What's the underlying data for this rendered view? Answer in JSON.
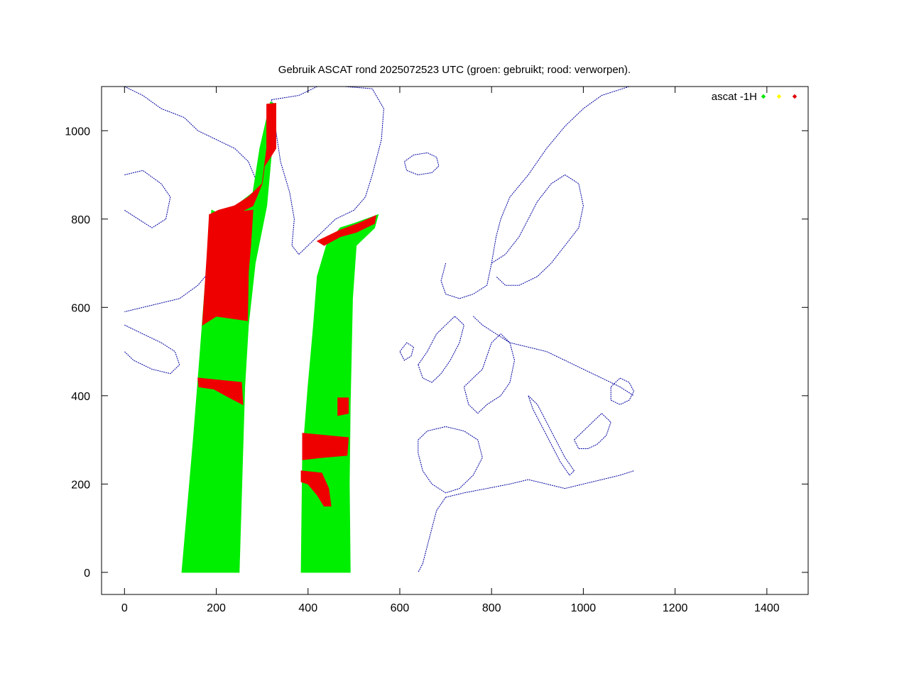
{
  "chart_data": {
    "type": "scatter",
    "title": "Gebruik ASCAT rond 2025072523 UTC (groen: gebruikt; rood: verworpen).",
    "xlabel": "",
    "ylabel": "",
    "xlim": [
      -50,
      1490
    ],
    "ylim": [
      -50,
      1100
    ],
    "x_ticks": [
      0,
      200,
      400,
      600,
      800,
      1000,
      1200,
      1400
    ],
    "y_ticks": [
      0,
      200,
      400,
      600,
      800,
      1000
    ],
    "x_tick_labels": [
      "0",
      "200",
      "400",
      "600",
      "800",
      "1000",
      "1200",
      "1400"
    ],
    "y_tick_labels": [
      "0",
      "200",
      "400",
      "600",
      "800",
      "1000"
    ],
    "grid": false,
    "legend": {
      "placement": "top-right",
      "label": "ascat -1H",
      "colors": [
        "#00e600",
        "#ffff00",
        "#e00000"
      ]
    },
    "colors": {
      "used": "#00ee00",
      "rejected": "#ee0000",
      "coast": "#0000a0"
    },
    "swaths": [
      {
        "name": "swath-west",
        "polygon": [
          [
            125,
            0
          ],
          [
            250,
            0
          ],
          [
            262,
            420
          ],
          [
            270,
            560
          ],
          [
            285,
            700
          ],
          [
            310,
            830
          ],
          [
            330,
            1060
          ],
          [
            318,
            1065
          ],
          [
            295,
            960
          ],
          [
            280,
            860
          ],
          [
            230,
            820
          ],
          [
            210,
            810
          ],
          [
            190,
            820
          ],
          [
            175,
            640
          ],
          [
            165,
            500
          ],
          [
            150,
            300
          ]
        ]
      },
      {
        "name": "swath-east",
        "polygon": [
          [
            385,
            0
          ],
          [
            492,
            0
          ],
          [
            490,
            200
          ],
          [
            492,
            380
          ],
          [
            497,
            620
          ],
          [
            505,
            740
          ],
          [
            545,
            780
          ],
          [
            553,
            810
          ],
          [
            540,
            805
          ],
          [
            500,
            790
          ],
          [
            470,
            780
          ],
          [
            440,
            740
          ],
          [
            420,
            670
          ],
          [
            412,
            560
          ],
          [
            400,
            420
          ],
          [
            388,
            260
          ]
        ]
      }
    ],
    "rejected_regions": [
      {
        "name": "rejected-greenland-strip",
        "polygon": [
          [
            310,
            1060
          ],
          [
            330,
            1062
          ],
          [
            330,
            960
          ],
          [
            318,
            940
          ],
          [
            305,
            920
          ],
          [
            300,
            880
          ],
          [
            270,
            850
          ],
          [
            240,
            830
          ],
          [
            205,
            820
          ],
          [
            185,
            810
          ],
          [
            195,
            800
          ],
          [
            240,
            810
          ],
          [
            280,
            830
          ],
          [
            300,
            880
          ],
          [
            310,
            960
          ]
        ]
      },
      {
        "name": "rejected-north-block",
        "polygon": [
          [
            185,
            810
          ],
          [
            280,
            820
          ],
          [
            275,
            740
          ],
          [
            270,
            680
          ],
          [
            268,
            570
          ],
          [
            200,
            580
          ],
          [
            170,
            560
          ],
          [
            175,
            640
          ],
          [
            180,
            720
          ]
        ]
      },
      {
        "name": "rejected-west-band",
        "polygon": [
          [
            160,
            440
          ],
          [
            255,
            430
          ],
          [
            258,
            380
          ],
          [
            230,
            395
          ],
          [
            195,
            415
          ],
          [
            162,
            420
          ]
        ]
      },
      {
        "name": "rejected-east-north",
        "polygon": [
          [
            420,
            750
          ],
          [
            470,
            775
          ],
          [
            510,
            790
          ],
          [
            548,
            808
          ],
          [
            545,
            790
          ],
          [
            505,
            770
          ],
          [
            470,
            760
          ],
          [
            435,
            740
          ]
        ]
      },
      {
        "name": "rejected-east-band-1",
        "polygon": [
          [
            465,
            395
          ],
          [
            488,
            395
          ],
          [
            488,
            360
          ],
          [
            465,
            355
          ]
        ]
      },
      {
        "name": "rejected-east-band-2",
        "polygon": [
          [
            388,
            315
          ],
          [
            488,
            305
          ],
          [
            485,
            265
          ],
          [
            430,
            260
          ],
          [
            388,
            255
          ]
        ]
      },
      {
        "name": "rejected-east-blob",
        "polygon": [
          [
            385,
            230
          ],
          [
            430,
            225
          ],
          [
            445,
            190
          ],
          [
            450,
            150
          ],
          [
            435,
            150
          ],
          [
            420,
            175
          ],
          [
            400,
            200
          ],
          [
            385,
            205
          ]
        ]
      }
    ],
    "coastlines": [
      {
        "name": "greenland",
        "points": [
          [
            320,
            1070
          ],
          [
            380,
            1080
          ],
          [
            420,
            1100
          ],
          [
            480,
            1100
          ],
          [
            540,
            1095
          ],
          [
            565,
            1050
          ],
          [
            560,
            980
          ],
          [
            540,
            900
          ],
          [
            525,
            850
          ],
          [
            500,
            820
          ],
          [
            460,
            800
          ],
          [
            430,
            770
          ],
          [
            400,
            740
          ],
          [
            380,
            720
          ],
          [
            365,
            740
          ],
          [
            370,
            800
          ],
          [
            360,
            860
          ],
          [
            340,
            930
          ],
          [
            330,
            1000
          ],
          [
            325,
            1050
          ],
          [
            320,
            1070
          ]
        ]
      },
      {
        "name": "canada-north",
        "points": [
          [
            0,
            1100
          ],
          [
            40,
            1080
          ],
          [
            80,
            1050
          ],
          [
            130,
            1030
          ],
          [
            160,
            1000
          ],
          [
            200,
            980
          ],
          [
            240,
            960
          ],
          [
            270,
            930
          ],
          [
            290,
            880
          ],
          [
            280,
            820
          ],
          [
            260,
            780
          ],
          [
            230,
            760
          ],
          [
            200,
            700
          ],
          [
            160,
            650
          ],
          [
            120,
            620
          ],
          [
            80,
            610
          ],
          [
            40,
            600
          ],
          [
            0,
            590
          ]
        ]
      },
      {
        "name": "canada-islands",
        "points": [
          [
            0,
            900
          ],
          [
            40,
            910
          ],
          [
            80,
            880
          ],
          [
            100,
            850
          ],
          [
            90,
            800
          ],
          [
            60,
            780
          ],
          [
            30,
            800
          ],
          [
            0,
            820
          ]
        ]
      },
      {
        "name": "labrador",
        "points": [
          [
            0,
            560
          ],
          [
            40,
            540
          ],
          [
            80,
            520
          ],
          [
            110,
            500
          ],
          [
            120,
            470
          ],
          [
            100,
            450
          ],
          [
            60,
            460
          ],
          [
            20,
            480
          ],
          [
            0,
            500
          ]
        ]
      },
      {
        "name": "iceland",
        "points": [
          [
            610,
            930
          ],
          [
            630,
            945
          ],
          [
            660,
            950
          ],
          [
            680,
            940
          ],
          [
            685,
            920
          ],
          [
            670,
            905
          ],
          [
            640,
            900
          ],
          [
            615,
            910
          ],
          [
            610,
            930
          ]
        ]
      },
      {
        "name": "scandinavia",
        "points": [
          [
            700,
            700
          ],
          [
            690,
            660
          ],
          [
            700,
            630
          ],
          [
            730,
            620
          ],
          [
            760,
            630
          ],
          [
            790,
            650
          ],
          [
            800,
            700
          ],
          [
            810,
            760
          ],
          [
            820,
            800
          ],
          [
            840,
            850
          ],
          [
            880,
            900
          ],
          [
            920,
            960
          ],
          [
            960,
            1010
          ],
          [
            1000,
            1050
          ],
          [
            1040,
            1080
          ],
          [
            1100,
            1100
          ]
        ]
      },
      {
        "name": "baltic-finland",
        "points": [
          [
            800,
            700
          ],
          [
            830,
            720
          ],
          [
            860,
            760
          ],
          [
            880,
            800
          ],
          [
            900,
            840
          ],
          [
            930,
            880
          ],
          [
            960,
            900
          ],
          [
            990,
            880
          ],
          [
            1000,
            830
          ],
          [
            990,
            780
          ],
          [
            960,
            740
          ],
          [
            930,
            700
          ],
          [
            900,
            670
          ],
          [
            860,
            650
          ],
          [
            830,
            650
          ],
          [
            810,
            670
          ]
        ]
      },
      {
        "name": "british-isles",
        "points": [
          [
            640,
            470
          ],
          [
            660,
            500
          ],
          [
            680,
            540
          ],
          [
            700,
            560
          ],
          [
            720,
            580
          ],
          [
            740,
            560
          ],
          [
            730,
            520
          ],
          [
            710,
            480
          ],
          [
            690,
            450
          ],
          [
            670,
            430
          ],
          [
            650,
            440
          ],
          [
            640,
            470
          ]
        ]
      },
      {
        "name": "ireland",
        "points": [
          [
            600,
            500
          ],
          [
            615,
            520
          ],
          [
            630,
            510
          ],
          [
            625,
            490
          ],
          [
            610,
            480
          ],
          [
            600,
            500
          ]
        ]
      },
      {
        "name": "europe-coast",
        "points": [
          [
            760,
            580
          ],
          [
            780,
            560
          ],
          [
            810,
            540
          ],
          [
            840,
            520
          ],
          [
            880,
            510
          ],
          [
            920,
            500
          ],
          [
            960,
            480
          ],
          [
            1000,
            460
          ],
          [
            1040,
            440
          ],
          [
            1080,
            420
          ],
          [
            1110,
            400
          ]
        ]
      },
      {
        "name": "iberia",
        "points": [
          [
            640,
            300
          ],
          [
            660,
            320
          ],
          [
            700,
            330
          ],
          [
            740,
            320
          ],
          [
            770,
            300
          ],
          [
            780,
            260
          ],
          [
            760,
            220
          ],
          [
            730,
            190
          ],
          [
            700,
            180
          ],
          [
            670,
            200
          ],
          [
            650,
            230
          ],
          [
            640,
            270
          ],
          [
            640,
            300
          ]
        ]
      },
      {
        "name": "france",
        "points": [
          [
            740,
            420
          ],
          [
            760,
            440
          ],
          [
            780,
            460
          ],
          [
            790,
            490
          ],
          [
            800,
            520
          ],
          [
            820,
            540
          ],
          [
            840,
            520
          ],
          [
            850,
            480
          ],
          [
            840,
            430
          ],
          [
            820,
            400
          ],
          [
            790,
            380
          ],
          [
            770,
            360
          ],
          [
            750,
            380
          ],
          [
            740,
            420
          ]
        ]
      },
      {
        "name": "italy",
        "points": [
          [
            880,
            400
          ],
          [
            900,
            380
          ],
          [
            920,
            340
          ],
          [
            940,
            300
          ],
          [
            960,
            260
          ],
          [
            980,
            230
          ],
          [
            970,
            220
          ],
          [
            950,
            250
          ],
          [
            930,
            290
          ],
          [
            910,
            330
          ],
          [
            890,
            370
          ],
          [
            880,
            400
          ]
        ]
      },
      {
        "name": "mediterranean-south",
        "points": [
          [
            700,
            170
          ],
          [
            740,
            180
          ],
          [
            790,
            190
          ],
          [
            840,
            200
          ],
          [
            880,
            210
          ],
          [
            920,
            200
          ],
          [
            960,
            190
          ],
          [
            1000,
            200
          ],
          [
            1040,
            210
          ],
          [
            1080,
            220
          ],
          [
            1110,
            230
          ]
        ]
      },
      {
        "name": "africa-west",
        "points": [
          [
            700,
            170
          ],
          [
            680,
            140
          ],
          [
            670,
            100
          ],
          [
            660,
            60
          ],
          [
            650,
            20
          ],
          [
            640,
            0
          ]
        ]
      },
      {
        "name": "greece-balkans",
        "points": [
          [
            980,
            300
          ],
          [
            1000,
            320
          ],
          [
            1020,
            340
          ],
          [
            1040,
            360
          ],
          [
            1060,
            340
          ],
          [
            1050,
            310
          ],
          [
            1030,
            290
          ],
          [
            1010,
            280
          ],
          [
            990,
            280
          ],
          [
            980,
            300
          ]
        ]
      },
      {
        "name": "black-sea",
        "points": [
          [
            1060,
            420
          ],
          [
            1080,
            440
          ],
          [
            1100,
            430
          ],
          [
            1110,
            410
          ],
          [
            1100,
            390
          ],
          [
            1080,
            380
          ],
          [
            1060,
            390
          ],
          [
            1060,
            420
          ]
        ]
      }
    ]
  }
}
